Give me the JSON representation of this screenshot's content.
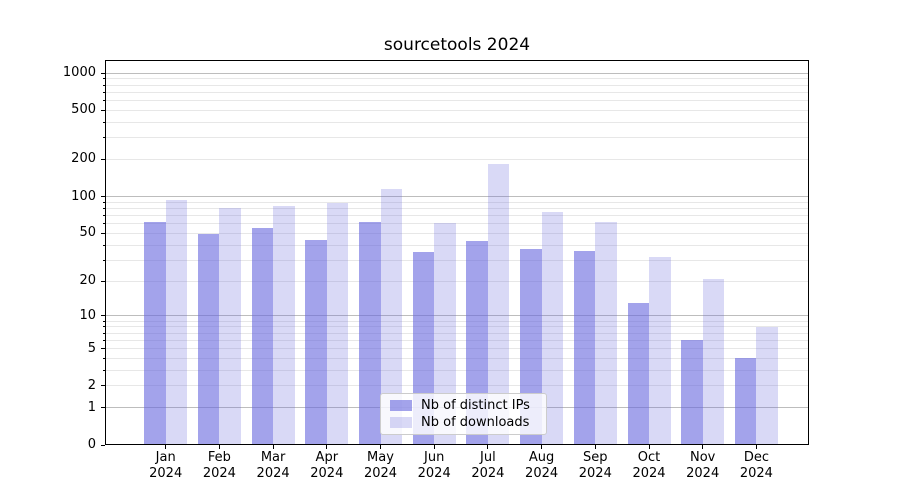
{
  "chart_data": {
    "type": "bar",
    "title": "sourcetools 2024",
    "categories": [
      "Jan 2024",
      "Feb 2024",
      "Mar 2024",
      "Apr 2024",
      "May 2024",
      "Jun 2024",
      "Jul 2024",
      "Aug 2024",
      "Sep 2024",
      "Oct 2024",
      "Nov 2024",
      "Dec 2024"
    ],
    "series": [
      {
        "name": "Nb of distinct IPs",
        "color": "rgba(102,102,221,0.6)",
        "values": [
          62,
          49,
          55,
          44,
          62,
          35,
          43,
          37,
          36,
          13,
          6,
          4
        ]
      },
      {
        "name": "Nb of downloads",
        "color": "rgba(102,102,221,0.25)",
        "values": [
          93,
          81,
          83,
          88,
          116,
          61,
          185,
          75,
          62,
          32,
          21,
          8
        ]
      }
    ],
    "xlabel": "",
    "ylabel": "",
    "yscale": "log1p",
    "ylim": [
      0,
      1270
    ],
    "yticks": [
      0,
      1,
      2,
      5,
      10,
      20,
      50,
      100,
      200,
      500,
      1000
    ],
    "grid": {
      "on": true,
      "major_values": [
        1,
        10,
        100,
        1000
      ],
      "minor_values": [
        2,
        3,
        4,
        5,
        6,
        7,
        8,
        9,
        20,
        30,
        40,
        50,
        60,
        70,
        80,
        90,
        200,
        300,
        400,
        500,
        600,
        700,
        800,
        900
      ]
    },
    "legend": {
      "position": "lower center"
    }
  },
  "colors": {
    "bar_base": "#6666dd",
    "grid_major": "#bdbdbd",
    "grid_minor": "#e7e7e7",
    "spine": "#000000",
    "legend_border": "#cccccc",
    "legend_bg": "rgba(255,255,255,0.8)"
  }
}
